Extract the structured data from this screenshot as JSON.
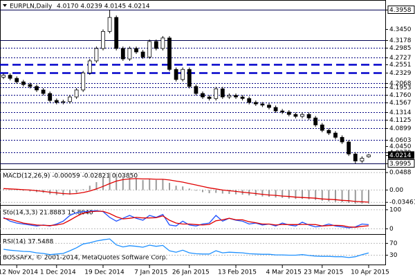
{
  "chart_data": [
    {
      "type": "candlestick",
      "title": "EURPLN,Daily",
      "info": "4.0170 4.0239 4.0145 4.0214",
      "categories": [
        null,
        null,
        "12 Nov 2014",
        null,
        null,
        null,
        null,
        null,
        "1 Dec 2014",
        null,
        null,
        null,
        null,
        null,
        null,
        "19 Dec 2014",
        null,
        null,
        null,
        null,
        null,
        null,
        "7 Jan 2015",
        null,
        null,
        null,
        null,
        null,
        "26 Jan 2015",
        null,
        null,
        null,
        null,
        null,
        null,
        "13 Feb 2015",
        null,
        null,
        null,
        null,
        null,
        null,
        "4 Mar 2015",
        null,
        null,
        null,
        null,
        null,
        "23 Mar 2015",
        null,
        null,
        null,
        null,
        null,
        null,
        "10 Apr 2015"
      ],
      "open": [
        4.222,
        4.227,
        4.219,
        4.21,
        4.203,
        4.198,
        4.189,
        4.18,
        4.162,
        4.157,
        4.159,
        4.171,
        4.189,
        4.233,
        4.264,
        4.296,
        4.34,
        4.376,
        4.296,
        4.269,
        4.296,
        4.287,
        4.274,
        4.314,
        4.296,
        4.323,
        4.242,
        4.216,
        4.242,
        4.198,
        4.18,
        4.171,
        4.167,
        4.192,
        4.171,
        4.175,
        4.171,
        4.167,
        4.157,
        4.153,
        4.15,
        4.144,
        4.135,
        4.132,
        4.126,
        4.121,
        4.126,
        4.117,
        4.099,
        4.085,
        4.078,
        4.067,
        4.055,
        4.024,
        4.006,
        4.017
      ],
      "high": [
        4.232,
        4.232,
        4.224,
        4.215,
        4.208,
        4.203,
        4.194,
        4.185,
        4.167,
        4.164,
        4.176,
        4.194,
        4.238,
        4.269,
        4.301,
        4.345,
        4.3958,
        4.381,
        4.301,
        4.301,
        4.301,
        4.292,
        4.319,
        4.319,
        4.328,
        4.328,
        4.247,
        4.247,
        4.247,
        4.203,
        4.185,
        4.176,
        4.197,
        4.197,
        4.18,
        4.18,
        4.176,
        4.172,
        4.162,
        4.158,
        4.155,
        4.149,
        4.14,
        4.137,
        4.131,
        4.131,
        4.131,
        4.122,
        4.104,
        4.09,
        4.083,
        4.072,
        4.06,
        4.029,
        4.018,
        4.0239
      ],
      "low": [
        4.217,
        4.214,
        4.205,
        4.198,
        4.193,
        4.184,
        4.175,
        4.157,
        4.152,
        4.152,
        4.154,
        4.166,
        4.184,
        4.228,
        4.259,
        4.291,
        4.335,
        4.291,
        4.264,
        4.264,
        4.282,
        4.269,
        4.269,
        4.291,
        4.291,
        4.237,
        4.211,
        4.211,
        4.193,
        4.175,
        4.166,
        4.162,
        4.162,
        4.166,
        4.166,
        4.166,
        4.162,
        4.152,
        4.148,
        4.145,
        4.139,
        4.13,
        4.127,
        4.121,
        4.116,
        4.116,
        4.112,
        4.094,
        4.08,
        4.073,
        4.062,
        4.05,
        4.019,
        3.9995,
        4.001,
        4.0145
      ],
      "close": [
        4.227,
        4.219,
        4.21,
        4.203,
        4.198,
        4.189,
        4.18,
        4.162,
        4.157,
        4.159,
        4.171,
        4.189,
        4.233,
        4.264,
        4.296,
        4.34,
        4.376,
        4.296,
        4.269,
        4.296,
        4.287,
        4.274,
        4.314,
        4.296,
        4.323,
        4.242,
        4.216,
        4.242,
        4.198,
        4.18,
        4.171,
        4.167,
        4.192,
        4.171,
        4.175,
        4.171,
        4.167,
        4.157,
        4.153,
        4.15,
        4.144,
        4.135,
        4.132,
        4.126,
        4.121,
        4.126,
        4.117,
        4.099,
        4.085,
        4.078,
        4.067,
        4.055,
        4.024,
        4.006,
        4.013,
        4.0214
      ],
      "ylim": [
        3.989,
        4.412
      ],
      "yticks": [
        {
          "value": 4.345,
          "label": "4.3450"
        }
      ],
      "levels": [
        {
          "value": 4.3958,
          "style": "solid",
          "box": "outline"
        },
        {
          "value": 4.3178,
          "style": "solid"
        },
        {
          "value": 4.2985,
          "style": "dot"
        },
        {
          "value": 4.2727,
          "style": "dot"
        },
        {
          "value": 4.2551,
          "style": "dash"
        },
        {
          "value": 4.2329,
          "style": "dash"
        },
        {
          "value": 4.2068,
          "style": "dot"
        },
        {
          "value": 4.1953,
          "style": "dot"
        },
        {
          "value": 4.176,
          "label": "4.1760",
          "style": "dot"
        },
        {
          "value": 4.1567,
          "style": "dot"
        },
        {
          "value": 4.1314,
          "style": "dot"
        },
        {
          "value": 4.1125,
          "style": "dot"
        },
        {
          "value": 4.0899,
          "style": "dot"
        },
        {
          "value": 4.0603,
          "style": "dot"
        },
        {
          "value": 4.045,
          "label": "4.0450",
          "style": "none"
        },
        {
          "value": 4.0279,
          "style": "dot"
        },
        {
          "value": 4.0214,
          "style": "none",
          "box": "fill"
        },
        {
          "value": 3.9995,
          "style": "solid",
          "box": "outline"
        }
      ]
    },
    {
      "type": "indicator",
      "title": "MACD(12,26,9) -0.00059 -0.02821 0.03850",
      "ylim": [
        -0.04,
        0.055
      ],
      "yticks": [
        0.0488,
        {
          "value": 0,
          "label": "0.00"
        },
        -0.03461
      ],
      "series": [
        {
          "style": "bar",
          "color": "#9a9a9a",
          "values": [
            0.002,
            0.001,
            0,
            -0.002,
            -0.004,
            -0.006,
            -0.008,
            -0.012,
            -0.014,
            -0.015,
            -0.013,
            -0.008,
            0.002,
            0.012,
            0.022,
            0.034,
            0.048,
            0.046,
            0.04,
            0.036,
            0.032,
            0.028,
            0.03,
            0.028,
            0.03,
            0.02,
            0.012,
            0.01,
            0.004,
            -0.002,
            -0.006,
            -0.009,
            -0.008,
            -0.01,
            -0.011,
            -0.012,
            -0.013,
            -0.015,
            -0.016,
            -0.018,
            -0.019,
            -0.021,
            -0.022,
            -0.024,
            -0.025,
            -0.025,
            -0.026,
            -0.028,
            -0.03,
            -0.032,
            -0.033,
            -0.034,
            -0.036,
            -0.038,
            -0.038,
            -0.038
          ]
        },
        {
          "style": "line",
          "color": "#e00000",
          "values": [
            0.004,
            0.003,
            0.002,
            0.001,
            0,
            -0.002,
            -0.004,
            -0.006,
            -0.008,
            -0.01,
            -0.011,
            -0.01,
            -0.007,
            -0.003,
            0.003,
            0.01,
            0.018,
            0.025,
            0.029,
            0.031,
            0.032,
            0.031,
            0.031,
            0.03,
            0.03,
            0.028,
            0.025,
            0.022,
            0.018,
            0.014,
            0.01,
            0.006,
            0.003,
            0,
            -0.002,
            -0.004,
            -0.006,
            -0.008,
            -0.01,
            -0.012,
            -0.014,
            -0.015,
            -0.017,
            -0.018,
            -0.02,
            -0.021,
            -0.022,
            -0.023,
            -0.025,
            -0.026,
            -0.027,
            -0.029,
            -0.03,
            -0.032,
            -0.033,
            -0.034
          ]
        }
      ]
    },
    {
      "type": "indicator",
      "title": "Sto(14,3,3) 21.8883 15.8040",
      "ylim": [
        -24,
        114
      ],
      "yticks": [
        100,
        0
      ],
      "series": [
        {
          "style": "line",
          "color": "#1e50ff",
          "values": [
            60,
            40,
            30,
            25,
            20,
            15,
            20,
            15,
            25,
            40,
            70,
            85,
            90,
            92,
            95,
            90,
            60,
            40,
            55,
            70,
            55,
            45,
            70,
            60,
            75,
            20,
            15,
            40,
            20,
            15,
            25,
            30,
            70,
            40,
            55,
            45,
            40,
            25,
            30,
            20,
            25,
            15,
            30,
            20,
            15,
            35,
            20,
            10,
            15,
            25,
            15,
            10,
            5,
            10,
            25,
            21.8883
          ]
        },
        {
          "style": "line",
          "color": "#e00000",
          "values": [
            55,
            50,
            40,
            30,
            25,
            20,
            18,
            17,
            20,
            27,
            45,
            65,
            82,
            89,
            92,
            92,
            80,
            63,
            52,
            55,
            60,
            57,
            57,
            58,
            68,
            45,
            30,
            25,
            25,
            22,
            20,
            23,
            42,
            47,
            55,
            47,
            47,
            37,
            32,
            25,
            25,
            20,
            23,
            22,
            22,
            23,
            23,
            22,
            15,
            17,
            18,
            17,
            10,
            8,
            13,
            15.804
          ]
        }
      ]
    },
    {
      "type": "indicator",
      "title": "RSI(14) 37.5488",
      "footer": "BOSSAFX, © 2001-2014, MetaQuotes Software Corp.",
      "ylim": [
        7.8,
        94.4
      ],
      "yticks": [
        70,
        30
      ],
      "series": [
        {
          "style": "line",
          "color": "#1e90ff",
          "values": [
            50,
            47,
            45,
            43,
            42,
            38,
            36,
            32,
            34,
            36,
            45,
            55,
            68,
            72,
            78,
            82,
            85,
            65,
            58,
            62,
            60,
            57,
            64,
            60,
            63,
            45,
            40,
            47,
            38,
            35,
            34,
            34,
            45,
            38,
            40,
            39,
            38,
            35,
            34,
            33,
            33,
            31,
            31,
            30,
            30,
            32,
            29,
            27,
            26,
            26,
            25,
            25,
            22,
            25,
            32,
            37.5488
          ]
        }
      ]
    }
  ]
}
